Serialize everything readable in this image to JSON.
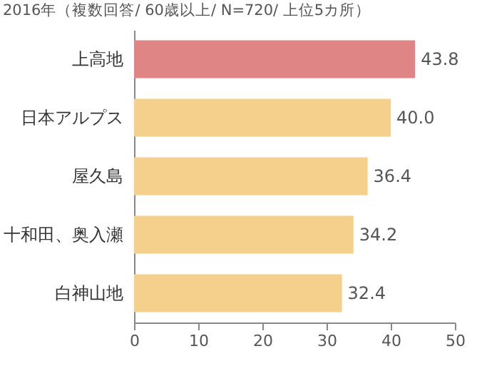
{
  "chart_data": {
    "type": "bar",
    "orientation": "horizontal",
    "title": "2016年（複数回答/ 60歳以上/ N=720/ 上位5カ所）",
    "categories": [
      "上高地",
      "日本アルプス",
      "屋久島",
      "十和田、奥入瀬",
      "白神山地"
    ],
    "values": [
      43.8,
      40.0,
      36.4,
      34.2,
      32.4
    ],
    "colors": [
      "#e08585",
      "#f5d08c",
      "#f5d08c",
      "#f5d08c",
      "#f5d08c"
    ],
    "value_labels": [
      "43.8",
      "40.0",
      "36.4",
      "34.2",
      "32.4"
    ],
    "xlim": [
      0,
      50
    ],
    "xticks": [
      0,
      10,
      20,
      30,
      40,
      50
    ],
    "grid": false
  }
}
